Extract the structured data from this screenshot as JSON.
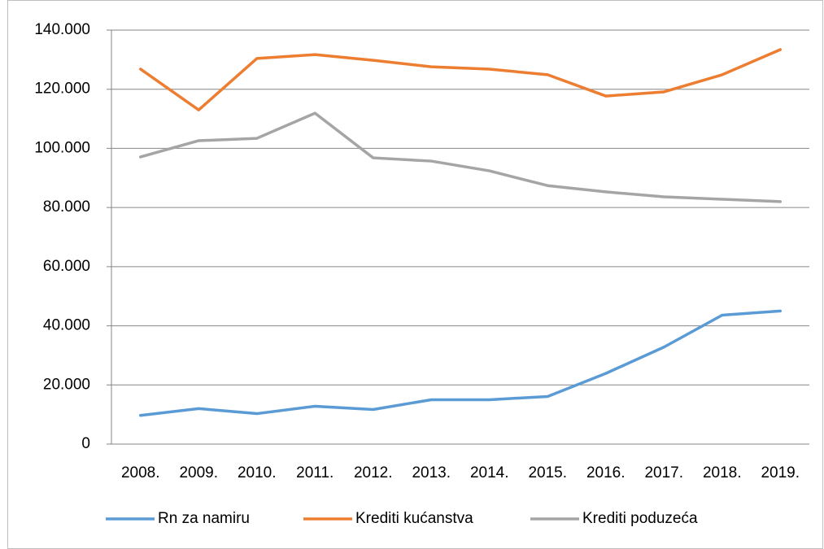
{
  "chart_data": {
    "type": "line",
    "categories": [
      "2008.",
      "2009.",
      "2010.",
      "2011.",
      "2012.",
      "2013.",
      "2014.",
      "2015.",
      "2016.",
      "2017.",
      "2018.",
      "2019."
    ],
    "series": [
      {
        "name": "Rn za namiru",
        "color": "#5b9bd5",
        "values": [
          9700,
          12000,
          10300,
          12800,
          11700,
          15000,
          15000,
          16100,
          23900,
          32800,
          43600,
          45000
        ]
      },
      {
        "name": "Krediti kućanstva",
        "color": "#ed7d31",
        "values": [
          126800,
          113000,
          130400,
          131700,
          129800,
          127600,
          126800,
          124900,
          117700,
          119100,
          124900,
          133400
        ]
      },
      {
        "name": "Krediti poduzeća",
        "color": "#a5a5a5",
        "values": [
          97100,
          102600,
          103400,
          111900,
          96800,
          95700,
          92400,
          87400,
          85300,
          83600,
          82800,
          82000
        ]
      }
    ],
    "ylim": [
      0,
      140000
    ],
    "yticks": [
      0,
      {
        "value": 20000,
        "label": "20.000"
      },
      {
        "value": 40000,
        "label": "40.000"
      },
      {
        "value": 60000,
        "label": "60.000"
      },
      {
        "value": 80000,
        "label": "80.000"
      },
      {
        "value": 100000,
        "label": "100.000"
      },
      {
        "value": 120000,
        "label": "120.000"
      },
      {
        "value": 140000,
        "label": "140.000"
      }
    ],
    "grid": true,
    "legend": "bottom"
  }
}
